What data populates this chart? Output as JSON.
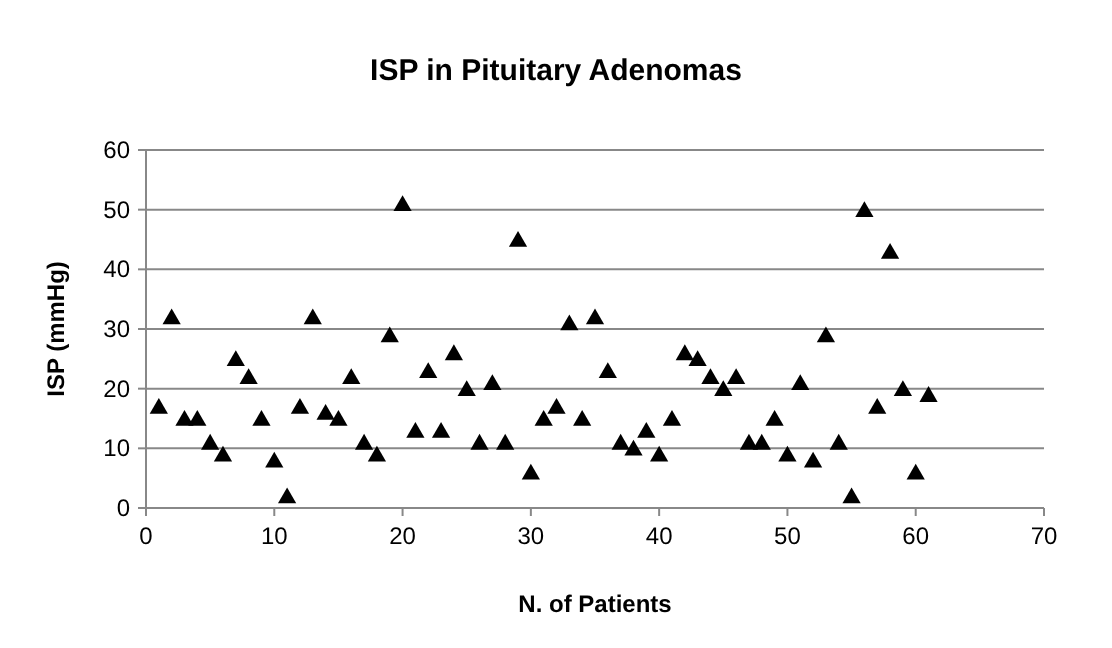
{
  "chart_data": {
    "type": "scatter",
    "title": "ISP in Pituitary Adenomas",
    "xlabel": "N. of Patients",
    "ylabel": "ISP (mmHg)",
    "x": [
      1,
      2,
      3,
      4,
      5,
      6,
      7,
      8,
      9,
      10,
      11,
      12,
      13,
      14,
      15,
      16,
      17,
      18,
      19,
      20,
      21,
      22,
      23,
      24,
      25,
      26,
      27,
      28,
      29,
      30,
      31,
      32,
      33,
      34,
      35,
      36,
      37,
      38,
      39,
      40,
      41,
      42,
      43,
      44,
      45,
      46,
      47,
      48,
      49,
      50,
      51,
      52,
      53,
      54,
      55,
      56,
      57,
      58,
      59,
      60,
      61
    ],
    "values": [
      17,
      32,
      15,
      15,
      11,
      9,
      25,
      22,
      15,
      8,
      2,
      17,
      32,
      16,
      15,
      22,
      11,
      9,
      29,
      51,
      13,
      23,
      13,
      26,
      20,
      11,
      21,
      11,
      45,
      6,
      15,
      17,
      31,
      15,
      32,
      23,
      11,
      10,
      13,
      9,
      15,
      26,
      25,
      22,
      20,
      22,
      11,
      11,
      15,
      9,
      21,
      8,
      29,
      11,
      2,
      50,
      17,
      43,
      20,
      6,
      19
    ],
    "color": "#000000",
    "marker": "triangle",
    "xlim": [
      0,
      70
    ],
    "xticks": [
      0,
      10,
      20,
      30,
      40,
      50,
      60,
      70
    ],
    "ylim": [
      0,
      60
    ],
    "yticks": [
      0,
      10,
      20,
      30,
      40,
      50,
      60
    ],
    "grid": "y"
  }
}
